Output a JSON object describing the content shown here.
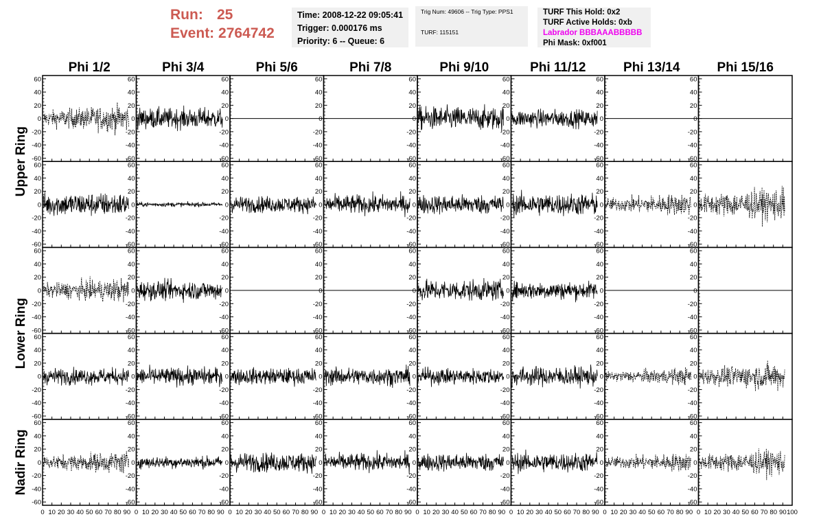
{
  "run": {
    "run_label": "Run:",
    "run_value": "25",
    "event_label": "Event:",
    "event_value": "2764742",
    "color": "#cc5a52"
  },
  "time_box": {
    "time": "Time: 2008-12-22 09:05:41",
    "trigger": "Trigger: 0.000176 ms",
    "priority": "Priority: 6 -- Queue: 6"
  },
  "trig_box": {
    "trig": "Trig Num: 49606 -- Trig Type: PPS1",
    "turf": "TURF: 115151"
  },
  "turf_box": {
    "this_hold": "TURF This Hold: 0x2",
    "active_holds": "TURF Active Holds: 0xb",
    "labrador": "Labrador BBBAAABBBBB",
    "phi_mask": "Phi Mask: 0xf001",
    "labrador_color": "#ee00ee"
  },
  "columns": [
    "Phi 1/2",
    "Phi 3/4",
    "Phi 5/6",
    "Phi 7/8",
    "Phi 9/10",
    "Phi 11/12",
    "Phi 13/14",
    "Phi 15/16"
  ],
  "row_groups": [
    {
      "label": "Upper Ring",
      "rows": [
        0,
        1
      ]
    },
    {
      "label": "Lower Ring",
      "rows": [
        2,
        3
      ]
    },
    {
      "label": "Nadir Ring",
      "rows": [
        4
      ]
    }
  ],
  "chart_data": {
    "type": "line",
    "grid": false,
    "xlim": [
      0,
      100
    ],
    "ylim": [
      -65,
      65
    ],
    "y_ticks": [
      -60,
      -40,
      -20,
      0,
      20,
      40,
      60
    ],
    "y_tick_labels": [
      "-60",
      "-40",
      "-20",
      "0",
      "20",
      "40",
      "60"
    ],
    "x_ticks": [
      0,
      10,
      20,
      30,
      40,
      50,
      60,
      70,
      80,
      90
    ],
    "x_tick_labels": [
      "0",
      "10",
      "20",
      "30",
      "40",
      "50",
      "60",
      "70",
      "80",
      "90"
    ],
    "x_last_label": "100",
    "grid_rows": 5,
    "grid_cols": 8,
    "panels": [
      [
        "dashed:15",
        "solid:14",
        "flat",
        "flat",
        "solid:16",
        "solid:12",
        "flat",
        "flat"
      ],
      [
        "solid:16",
        "solid:3",
        "solid:11",
        "solid:13",
        "solid:13",
        "solid:15",
        "dashed:12",
        "dashed:18"
      ],
      [
        "dashed:13",
        "solid:13",
        "flat",
        "flat",
        "solid:14",
        "solid:12",
        "flat",
        "flat"
      ],
      [
        "solid:11",
        "solid:12",
        "solid:11",
        "solid:12",
        "solid:11",
        "solid:13",
        "dashed:9",
        "dashed:15"
      ],
      [
        "dashed:12",
        "solid:8",
        "solid:13",
        "solid:12",
        "solid:12",
        "solid:13",
        "dashed:10",
        "dashed:14"
      ]
    ]
  }
}
